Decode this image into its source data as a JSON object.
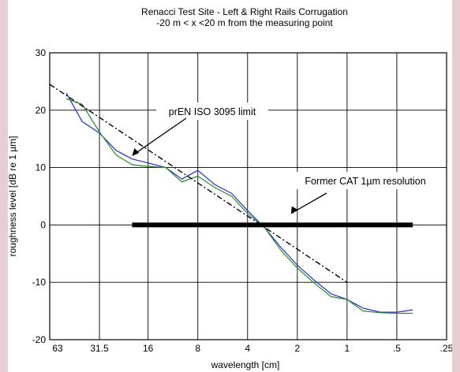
{
  "chart_data": {
    "type": "line",
    "title_lines": [
      "Renacci Test Site - Left & Right Rails Corrugation",
      "-20 m < x <20 m from the measuring point"
    ],
    "xlabel": "wavelength [cm]",
    "ylabel": "roughness level [dB re 1 µm]",
    "x_scale": "log2, decreasing to the right",
    "xlim": [
      63,
      0.25
    ],
    "ylim": [
      -20,
      30
    ],
    "x_ticks": [
      63,
      31.5,
      16,
      8,
      4,
      2,
      1,
      0.5,
      0.25
    ],
    "x_tick_labels": [
      "63",
      "31.5",
      "16",
      "8",
      "4",
      "2",
      "1",
      ".5",
      ".25"
    ],
    "y_ticks": [
      -20,
      -10,
      0,
      10,
      20,
      30
    ],
    "y_tick_labels": [
      "-20",
      "-10",
      "0",
      "10",
      "20",
      "30"
    ],
    "grid": true,
    "legend": "none",
    "series": [
      {
        "color": "#1f2fd0",
        "x": [
          50,
          40,
          31.5,
          25,
          20,
          16,
          12.5,
          10,
          8,
          6.3,
          5,
          4,
          3.15,
          2.5,
          2,
          1.6,
          1.25,
          1,
          0.8,
          0.63,
          0.5,
          0.4
        ],
        "y": [
          23,
          18,
          16,
          13,
          11.5,
          10.8,
          10,
          8,
          9.5,
          7,
          5.5,
          2.5,
          -0.5,
          -4,
          -7,
          -9.5,
          -12,
          -13,
          -14.5,
          -15.2,
          -15.2,
          -14.8
        ]
      },
      {
        "color": "#2b8a2b",
        "x": [
          50,
          40,
          31.5,
          25,
          20,
          16,
          12.5,
          10,
          8,
          6.3,
          5,
          4,
          3.15,
          2.5,
          2,
          1.6,
          1.25,
          1,
          0.8,
          0.63,
          0.5,
          0.4
        ],
        "y": [
          22,
          21,
          16.2,
          12.2,
          10.5,
          10.2,
          10,
          7.5,
          8.5,
          6.5,
          5,
          2,
          -0.5,
          -4.5,
          -7.5,
          -10,
          -12.5,
          -13,
          -15,
          -15.3,
          -15.4,
          -15.4
        ]
      },
      {
        "style": "dash-dot",
        "color": "#000000",
        "x": [
          63,
          1
        ],
        "y": [
          24.5,
          -10
        ]
      },
      {
        "style": "thick",
        "color": "#000000",
        "x": [
          20,
          0.4
        ],
        "y": [
          0,
          0
        ]
      }
    ],
    "annotations": [
      {
        "text": "prEN ISO 3095 limit",
        "arrow_to": {
          "x": 20,
          "y": 12
        }
      },
      {
        "text": "Former CAT 1µm resolution",
        "arrow_to": {
          "x": 2,
          "y": 0.5
        }
      }
    ]
  }
}
